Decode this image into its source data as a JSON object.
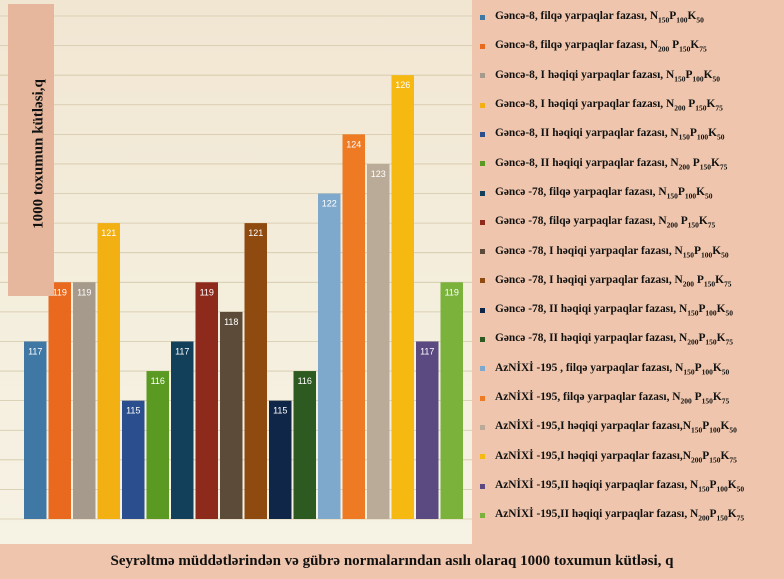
{
  "chart_data": {
    "type": "bar",
    "title": "",
    "xlabel": "Seyrəltmə müddətlərindən və gübrə normalarından asılı olaraq 1000 toxumun kütləsi, q",
    "ylabel": "1000 toxumun kütləsi,q",
    "ylim": [
      111,
      128
    ],
    "grid": true,
    "legend_position": "right",
    "series": [
      {
        "name": "Gəncə-8, filqə yarpaqlar fazası, N150P100K50",
        "value": 117,
        "color": "#3f78a4"
      },
      {
        "name": "Gəncə-8, filqə yarpaqlar fazası, N200 P150K75",
        "value": 119,
        "color": "#e9691f"
      },
      {
        "name": "Gəncə-8, I həqiqi yarpaqlar fazası, N150P100K50",
        "value": 119,
        "color": "#a59a8c"
      },
      {
        "name": "Gəncə-8, I həqiqi yarpaqlar fazası, N200 P150K75",
        "value": 121,
        "color": "#f3b013"
      },
      {
        "name": "Gəncə-8, II həqiqi yarpaqlar fazası, N150P100K50",
        "value": 115,
        "color": "#2b4e8e"
      },
      {
        "name": "Gəncə-8, II həqiqi yarpaqlar fazası, N200 P150K75",
        "value": 116,
        "color": "#5a9a22"
      },
      {
        "name": "Gəncə -78, filqə yarpaqlar fazası, N150P100K50",
        "value": 117,
        "color": "#123f5a"
      },
      {
        "name": "Gəncə -78, filqə yarpaqlar fazası, N200 P150K75",
        "value": 119,
        "color": "#8e2a1c"
      },
      {
        "name": "Gəncə -78, I həqiqi yarpaqlar fazası, N150P100K50",
        "value": 118,
        "color": "#5d4b3a"
      },
      {
        "name": "Gəncə -78, I həqiqi yarpaqlar fazası, N200 P150K75",
        "value": 121,
        "color": "#8f4a10"
      },
      {
        "name": "Gəncə -78, II həqiqi yarpaqlar fazası, N150P100K50",
        "value": 115,
        "color": "#0f2648"
      },
      {
        "name": "Gəncə -78, II həqiqi yarpaqlar fazası, N200P150K75",
        "value": 116,
        "color": "#2c5a20"
      },
      {
        "name": "AzNİXİ -195 , filqə yarpaqlar fazası, N150P100K50",
        "value": 122,
        "color": "#7fa9cc"
      },
      {
        "name": "AzNİXİ -195, filqə yarpaqlar fazası, N200 P150K75",
        "value": 124,
        "color": "#ee7a24"
      },
      {
        "name": "AzNİXİ -195,I həqiqi yarpaqlar fazası,N150P100K50",
        "value": 123,
        "color": "#b9ab97"
      },
      {
        "name": "AzNİXİ -195,I həqiqi yarpaqlar fazası,N200P150K75",
        "value": 126,
        "color": "#f5b912"
      },
      {
        "name": "AzNİXİ -195,II həqiqi yarpaqlar fazası, N150P100K50",
        "value": 117,
        "color": "#5b4a82"
      },
      {
        "name": "AzNİXİ -195,II həqiqi yarpaqlar fazası, N200P150K75",
        "value": 119,
        "color": "#7ab23c"
      }
    ]
  },
  "legend_items": [
    {
      "prefix": "Gəncə-8, filqə yarpaqlar fazası, ",
      "formula": [
        [
          "N",
          "150"
        ],
        [
          "P",
          "100"
        ],
        [
          "K",
          "50"
        ]
      ]
    },
    {
      "prefix": "Gəncə-8, filqə yarpaqlar fazası, ",
      "formula": [
        [
          "N",
          "200"
        ],
        [
          " P",
          "150"
        ],
        [
          "K",
          "75"
        ]
      ]
    },
    {
      "prefix": "Gəncə-8, I həqiqi yarpaqlar fazası, ",
      "formula": [
        [
          "N",
          "150"
        ],
        [
          "P",
          "100"
        ],
        [
          "K",
          "50"
        ]
      ]
    },
    {
      "prefix": "Gəncə-8, I həqiqi yarpaqlar fazası, ",
      "formula": [
        [
          "N",
          "200"
        ],
        [
          " P",
          "150"
        ],
        [
          "K",
          "75"
        ]
      ]
    },
    {
      "prefix": "Gəncə-8, II həqiqi yarpaqlar fazası, ",
      "formula": [
        [
          "N",
          "150"
        ],
        [
          "P",
          "100"
        ],
        [
          "K",
          "50"
        ]
      ]
    },
    {
      "prefix": "Gəncə-8, II həqiqi yarpaqlar fazası, ",
      "formula": [
        [
          "N",
          "200"
        ],
        [
          " P",
          "150"
        ],
        [
          "K",
          "75"
        ]
      ]
    },
    {
      "prefix": "Gəncə -78, filqə yarpaqlar fazası, ",
      "formula": [
        [
          "N",
          "150"
        ],
        [
          "P",
          "100"
        ],
        [
          "K",
          "50"
        ]
      ]
    },
    {
      "prefix": "Gəncə -78, filqə yarpaqlar fazası, ",
      "formula": [
        [
          "N",
          "200"
        ],
        [
          " P",
          "150"
        ],
        [
          "K",
          "75"
        ]
      ]
    },
    {
      "prefix": "Gəncə -78, I həqiqi yarpaqlar fazası, ",
      "formula": [
        [
          "N",
          "150"
        ],
        [
          "P",
          "100"
        ],
        [
          "K",
          "50"
        ]
      ]
    },
    {
      "prefix": "Gəncə -78, I həqiqi yarpaqlar fazası, ",
      "formula": [
        [
          "N",
          "200"
        ],
        [
          " P",
          "150"
        ],
        [
          "K",
          "75"
        ]
      ]
    },
    {
      "prefix": "Gəncə -78, II həqiqi yarpaqlar fazası, ",
      "formula": [
        [
          "N",
          "150"
        ],
        [
          "P",
          "100"
        ],
        [
          "K",
          "50"
        ]
      ]
    },
    {
      "prefix": "Gəncə -78, II həqiqi yarpaqlar fazası, ",
      "formula": [
        [
          "N",
          "200"
        ],
        [
          "P",
          "150"
        ],
        [
          "K",
          "75"
        ]
      ]
    },
    {
      "prefix": "AzNİXİ -195 , filqə yarpaqlar fazası, ",
      "formula": [
        [
          "N",
          "150"
        ],
        [
          "P",
          "100"
        ],
        [
          "K",
          "50"
        ]
      ]
    },
    {
      "prefix": "AzNİXİ -195, filqə yarpaqlar fazası, ",
      "formula": [
        [
          "N",
          "200"
        ],
        [
          " P",
          "150"
        ],
        [
          "K",
          "75"
        ]
      ]
    },
    {
      "prefix": "AzNİXİ -195,I həqiqi yarpaqlar fazası,",
      "formula": [
        [
          "N",
          "150"
        ],
        [
          "P",
          "100"
        ],
        [
          "K",
          "50"
        ]
      ]
    },
    {
      "prefix": "AzNİXİ -195,I həqiqi yarpaqlar fazası,",
      "formula": [
        [
          "N",
          "200"
        ],
        [
          "P",
          "150"
        ],
        [
          "K",
          "75"
        ]
      ]
    },
    {
      "prefix": "AzNİXİ -195,II həqiqi yarpaqlar fazası, ",
      "formula": [
        [
          "N",
          "150"
        ],
        [
          "P",
          "100"
        ],
        [
          "K",
          "50"
        ]
      ]
    },
    {
      "prefix": "AzNİXİ -195,II həqiqi yarpaqlar fazası, ",
      "formula": [
        [
          "N",
          "200"
        ],
        [
          "P",
          "150"
        ],
        [
          "K",
          "75"
        ]
      ]
    }
  ],
  "colors": {
    "background": "#efc6ad",
    "plot_background": "#f4eedd",
    "ylabel_box": "#e6b79d",
    "gridline": "#d4c8a8"
  }
}
